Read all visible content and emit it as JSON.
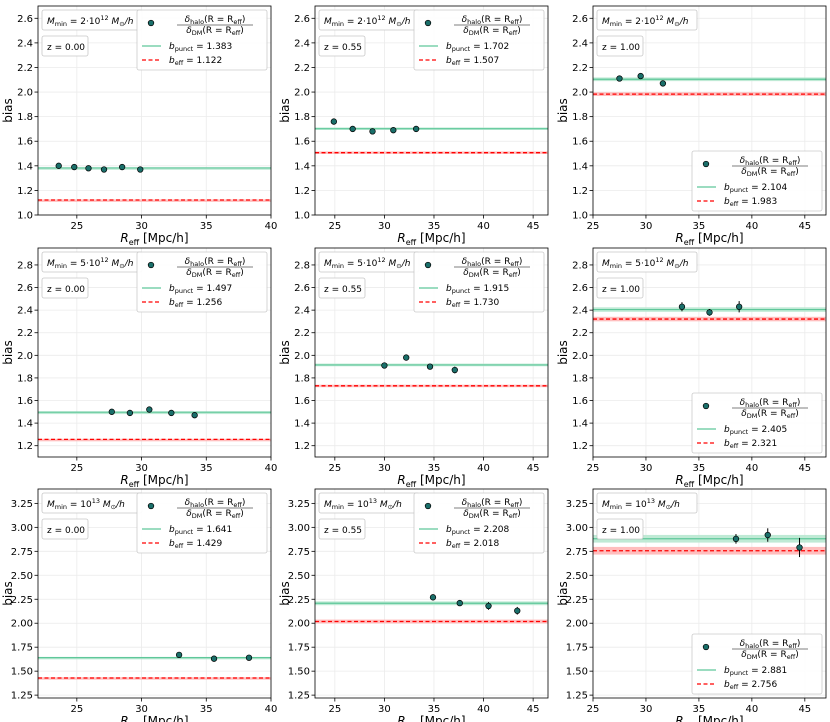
{
  "figure": {
    "ylabel": "bias",
    "xlabel": "R_eff [Mpc/h]",
    "legend_ratio_label": "δ_halo(R = R_eff) / δ_DM(R = R_eff)",
    "colors": {
      "points": "#1a6f6a",
      "punct": "#5fc79a",
      "punct_band": "#b8e8d0",
      "eff": "#ff0000",
      "eff_band": "#ffb3b3"
    }
  },
  "chart_data": [
    {
      "type": "scatter",
      "row": 0,
      "col": 0,
      "mmin_label": "M_min = 2·10^12 M⊙/h",
      "mmin_base": "2·10",
      "mmin_exp": "12",
      "z_label": "z = 0.00",
      "xlim": [
        22,
        40
      ],
      "xticks": [
        25,
        30,
        35,
        40
      ],
      "ylim": [
        1.0,
        2.7
      ],
      "yticks": [
        1.0,
        1.2,
        1.4,
        1.6,
        1.8,
        2.0,
        2.2,
        2.4,
        2.6
      ],
      "ytick_decimals": 1,
      "legend_pos": "top-right",
      "points": [
        {
          "x": 23.6,
          "y": 1.4,
          "err": 0.01
        },
        {
          "x": 24.8,
          "y": 1.39,
          "err": 0.01
        },
        {
          "x": 25.9,
          "y": 1.38,
          "err": 0.01
        },
        {
          "x": 27.1,
          "y": 1.37,
          "err": 0.01
        },
        {
          "x": 28.5,
          "y": 1.39,
          "err": 0.01
        },
        {
          "x": 29.9,
          "y": 1.37,
          "err": 0.01
        }
      ],
      "b_punct": 1.383,
      "b_punct_label": "1.383",
      "b_punct_err": 0.005,
      "b_eff": 1.122,
      "b_eff_label": "1.122",
      "b_eff_err": 0.005
    },
    {
      "type": "scatter",
      "row": 0,
      "col": 1,
      "mmin_label": "M_min = 2·10^12 M⊙/h",
      "mmin_base": "2·10",
      "mmin_exp": "12",
      "z_label": "z = 0.55",
      "xlim": [
        23,
        46.5
      ],
      "xticks": [
        25,
        30,
        35,
        40,
        45
      ],
      "ylim": [
        1.0,
        2.7
      ],
      "yticks": [
        1.0,
        1.2,
        1.4,
        1.6,
        1.8,
        2.0,
        2.2,
        2.4,
        2.6
      ],
      "ytick_decimals": 1,
      "legend_pos": "top-right",
      "points": [
        {
          "x": 24.9,
          "y": 1.76,
          "err": 0.01
        },
        {
          "x": 26.8,
          "y": 1.7,
          "err": 0.01
        },
        {
          "x": 28.8,
          "y": 1.68,
          "err": 0.01
        },
        {
          "x": 30.9,
          "y": 1.69,
          "err": 0.01
        },
        {
          "x": 33.2,
          "y": 1.7,
          "err": 0.01
        }
      ],
      "b_punct": 1.702,
      "b_punct_label": "1.702",
      "b_punct_err": 0.01,
      "b_eff": 1.507,
      "b_eff_label": "1.507",
      "b_eff_err": 0.01
    },
    {
      "type": "scatter",
      "row": 0,
      "col": 2,
      "mmin_label": "M_min = 2·10^12 M⊙/h",
      "mmin_base": "2·10",
      "mmin_exp": "12",
      "z_label": "z = 1.00",
      "xlim": [
        25,
        47
      ],
      "xticks": [
        25,
        30,
        35,
        40,
        45
      ],
      "ylim": [
        1.0,
        2.7
      ],
      "yticks": [
        1.0,
        1.2,
        1.4,
        1.6,
        1.8,
        2.0,
        2.2,
        2.4,
        2.6
      ],
      "ytick_decimals": 1,
      "legend_pos": "bottom-right",
      "points": [
        {
          "x": 27.5,
          "y": 2.11,
          "err": 0.02
        },
        {
          "x": 29.5,
          "y": 2.13,
          "err": 0.02
        },
        {
          "x": 31.6,
          "y": 2.07,
          "err": 0.02
        }
      ],
      "b_punct": 2.104,
      "b_punct_label": "2.104",
      "b_punct_err": 0.015,
      "b_eff": 1.983,
      "b_eff_label": "1.983",
      "b_eff_err": 0.015
    },
    {
      "type": "scatter",
      "row": 1,
      "col": 0,
      "mmin_label": "M_min = 5·10^12 M⊙/h",
      "mmin_base": "5·10",
      "mmin_exp": "12",
      "z_label": "z = 0.00",
      "xlim": [
        22,
        40
      ],
      "xticks": [
        25,
        30,
        35,
        40
      ],
      "ylim": [
        1.1,
        2.95
      ],
      "yticks": [
        1.2,
        1.4,
        1.6,
        1.8,
        2.0,
        2.2,
        2.4,
        2.6,
        2.8
      ],
      "ytick_decimals": 1,
      "legend_pos": "top-right",
      "points": [
        {
          "x": 27.7,
          "y": 1.5,
          "err": 0.01
        },
        {
          "x": 29.1,
          "y": 1.49,
          "err": 0.01
        },
        {
          "x": 30.6,
          "y": 1.52,
          "err": 0.01
        },
        {
          "x": 32.3,
          "y": 1.49,
          "err": 0.01
        },
        {
          "x": 34.1,
          "y": 1.47,
          "err": 0.01
        }
      ],
      "b_punct": 1.497,
      "b_punct_label": "1.497",
      "b_punct_err": 0.005,
      "b_eff": 1.256,
      "b_eff_label": "1.256",
      "b_eff_err": 0.005
    },
    {
      "type": "scatter",
      "row": 1,
      "col": 1,
      "mmin_label": "M_min = 5·10^12 M⊙/h",
      "mmin_base": "5·10",
      "mmin_exp": "12",
      "z_label": "z = 0.55",
      "xlim": [
        23,
        46.5
      ],
      "xticks": [
        25,
        30,
        35,
        40,
        45
      ],
      "ylim": [
        1.1,
        2.95
      ],
      "yticks": [
        1.2,
        1.4,
        1.6,
        1.8,
        2.0,
        2.2,
        2.4,
        2.6,
        2.8
      ],
      "ytick_decimals": 1,
      "legend_pos": "top-right",
      "points": [
        {
          "x": 30.0,
          "y": 1.91,
          "err": 0.015
        },
        {
          "x": 32.2,
          "y": 1.98,
          "err": 0.025
        },
        {
          "x": 34.6,
          "y": 1.9,
          "err": 0.015
        },
        {
          "x": 37.1,
          "y": 1.87,
          "err": 0.03
        }
      ],
      "b_punct": 1.915,
      "b_punct_label": "1.915",
      "b_punct_err": 0.012,
      "b_eff": 1.73,
      "b_eff_label": "1.730",
      "b_eff_err": 0.01
    },
    {
      "type": "scatter",
      "row": 1,
      "col": 2,
      "mmin_label": "M_min = 5·10^12 M⊙/h",
      "mmin_base": "5·10",
      "mmin_exp": "12",
      "z_label": "z = 1.00",
      "xlim": [
        25,
        47
      ],
      "xticks": [
        25,
        30,
        35,
        40,
        45
      ],
      "ylim": [
        1.1,
        2.95
      ],
      "yticks": [
        1.2,
        1.4,
        1.6,
        1.8,
        2.0,
        2.2,
        2.4,
        2.6,
        2.8
      ],
      "ytick_decimals": 1,
      "legend_pos": "bottom-right",
      "points": [
        {
          "x": 33.4,
          "y": 2.43,
          "err": 0.04
        },
        {
          "x": 36.0,
          "y": 2.38,
          "err": 0.03
        },
        {
          "x": 38.8,
          "y": 2.43,
          "err": 0.05
        }
      ],
      "b_punct": 2.405,
      "b_punct_label": "2.405",
      "b_punct_err": 0.02,
      "b_eff": 2.321,
      "b_eff_label": "2.321",
      "b_eff_err": 0.02
    },
    {
      "type": "scatter",
      "row": 2,
      "col": 0,
      "mmin_label": "M_min = 10^13 M⊙/h",
      "mmin_base": "10",
      "mmin_exp": "13",
      "z_label": "z = 0.00",
      "xlim": [
        22,
        40
      ],
      "xticks": [
        25,
        30,
        35,
        40
      ],
      "ylim": [
        1.22,
        3.4
      ],
      "yticks": [
        1.25,
        1.5,
        1.75,
        2.0,
        2.25,
        2.5,
        2.75,
        3.0,
        3.25
      ],
      "ytick_decimals": 2,
      "legend_pos": "top-right",
      "points": [
        {
          "x": 32.9,
          "y": 1.67,
          "err": 0.01
        },
        {
          "x": 35.6,
          "y": 1.63,
          "err": 0.01
        },
        {
          "x": 38.3,
          "y": 1.64,
          "err": 0.01
        }
      ],
      "b_punct": 1.641,
      "b_punct_label": "1.641",
      "b_punct_err": 0.008,
      "b_eff": 1.429,
      "b_eff_label": "1.429",
      "b_eff_err": 0.008
    },
    {
      "type": "scatter",
      "row": 2,
      "col": 1,
      "mmin_label": "M_min = 10^13 M⊙/h",
      "mmin_base": "10",
      "mmin_exp": "13",
      "z_label": "z = 0.55",
      "xlim": [
        23,
        46.5
      ],
      "xticks": [
        25,
        30,
        35,
        40,
        45
      ],
      "ylim": [
        1.22,
        3.4
      ],
      "yticks": [
        1.25,
        1.5,
        1.75,
        2.0,
        2.25,
        2.5,
        2.75,
        3.0,
        3.25
      ],
      "ytick_decimals": 2,
      "legend_pos": "top-right",
      "points": [
        {
          "x": 34.9,
          "y": 2.27,
          "err": 0.03
        },
        {
          "x": 37.6,
          "y": 2.21,
          "err": 0.03
        },
        {
          "x": 40.5,
          "y": 2.18,
          "err": 0.04
        },
        {
          "x": 43.4,
          "y": 2.13,
          "err": 0.04
        }
      ],
      "b_punct": 2.208,
      "b_punct_label": "2.208",
      "b_punct_err": 0.02,
      "b_eff": 2.018,
      "b_eff_label": "2.018",
      "b_eff_err": 0.02
    },
    {
      "type": "scatter",
      "row": 2,
      "col": 2,
      "mmin_label": "M_min = 10^13 M⊙/h",
      "mmin_base": "10",
      "mmin_exp": "13",
      "z_label": "z = 1.00",
      "xlim": [
        25,
        47
      ],
      "xticks": [
        25,
        30,
        35,
        40,
        45
      ],
      "ylim": [
        1.22,
        3.4
      ],
      "yticks": [
        1.25,
        1.5,
        1.75,
        2.0,
        2.25,
        2.5,
        2.75,
        3.0,
        3.25
      ],
      "ytick_decimals": 2,
      "legend_pos": "bottom-right",
      "points": [
        {
          "x": 38.5,
          "y": 2.88,
          "err": 0.05
        },
        {
          "x": 41.5,
          "y": 2.92,
          "err": 0.07
        },
        {
          "x": 44.5,
          "y": 2.79,
          "err": 0.1
        }
      ],
      "b_punct": 2.881,
      "b_punct_label": "2.881",
      "b_punct_err": 0.04,
      "b_eff": 2.756,
      "b_eff_label": "2.756",
      "b_eff_err": 0.04
    }
  ]
}
